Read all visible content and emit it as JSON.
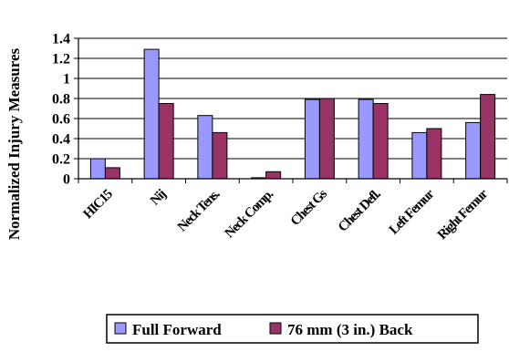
{
  "chart_data": {
    "type": "bar",
    "ylabel": "Normalized Injury Measures",
    "ylim": [
      0,
      1.4
    ],
    "yticks": [
      "0",
      "0.2",
      "0.4",
      "0.6",
      "0.8",
      "1",
      "1.2",
      "1.4"
    ],
    "grid": true,
    "legend_position": "bottom",
    "categories": [
      "HIC15",
      "Nij",
      "Neck Tens.",
      "Neck Comp.",
      "Chest Gs",
      "Chest Defl.",
      "Left Femur",
      "Right Femur"
    ],
    "series": [
      {
        "name": "Full Forward",
        "color": "#9999ff",
        "values": [
          0.2,
          1.29,
          0.63,
          0.01,
          0.79,
          0.79,
          0.46,
          0.56
        ]
      },
      {
        "name": "76 mm (3 in.) Back",
        "color": "#993366",
        "values": [
          0.11,
          0.75,
          0.46,
          0.07,
          0.8,
          0.75,
          0.5,
          0.84
        ]
      }
    ]
  }
}
